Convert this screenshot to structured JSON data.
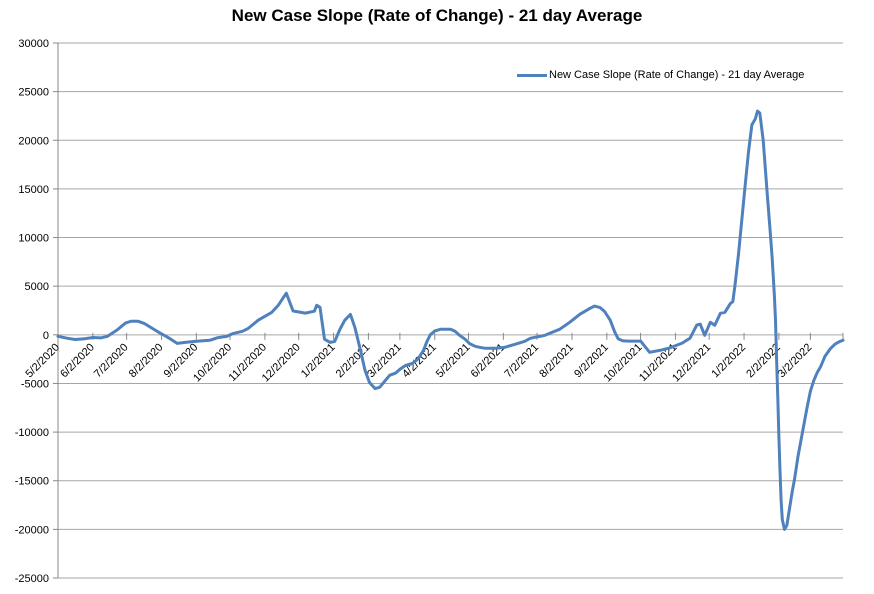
{
  "chart_data": {
    "type": "line",
    "title": "New Case Slope (Rate of Change) - 21 day Average",
    "xlabel": "",
    "ylabel": "",
    "grid": true,
    "legend": {
      "position": "top-right",
      "entries": [
        {
          "label": "New Case Slope (Rate of Change) - 21 day Average",
          "color": "#4F81BD"
        }
      ]
    },
    "ylim": [
      -25000,
      30000
    ],
    "y_ticks": [
      30000,
      25000,
      20000,
      15000,
      10000,
      5000,
      0,
      -5000,
      -10000,
      -15000,
      -20000,
      -25000
    ],
    "categories": [
      "5/2/2020",
      "6/2/2020",
      "7/2/2020",
      "8/2/2020",
      "9/2/2020",
      "10/2/2020",
      "11/2/2020",
      "12/2/2020",
      "1/2/2021",
      "2/2/2021",
      "3/2/2021",
      "4/2/2021",
      "5/2/2021",
      "6/2/2021",
      "7/2/2021",
      "8/2/2021",
      "9/2/2021",
      "10/2/2021",
      "11/2/2021",
      "12/2/2021",
      "1/2/2022",
      "2/2/2022",
      "3/2/2022"
    ],
    "category_day_offsets": [
      0,
      31,
      61,
      92,
      123,
      153,
      184,
      214,
      245,
      276,
      304,
      335,
      365,
      396,
      426,
      457,
      488,
      518,
      549,
      579,
      610,
      641,
      669
    ],
    "x_range_days": [
      0,
      698
    ],
    "x_unit": "days since 5/2/2020",
    "series": [
      {
        "name": "New Case Slope (Rate of Change) - 21 day Average",
        "color": "#4F81BD",
        "points": [
          [
            0,
            -150
          ],
          [
            8,
            -350
          ],
          [
            15,
            -480
          ],
          [
            24,
            -400
          ],
          [
            31,
            -280
          ],
          [
            38,
            -320
          ],
          [
            44,
            -150
          ],
          [
            52,
            450
          ],
          [
            60,
            1200
          ],
          [
            65,
            1400
          ],
          [
            71,
            1400
          ],
          [
            77,
            1150
          ],
          [
            84,
            650
          ],
          [
            89,
            300
          ],
          [
            96,
            -150
          ],
          [
            101,
            -500
          ],
          [
            106,
            -880
          ],
          [
            113,
            -780
          ],
          [
            122,
            -680
          ],
          [
            129,
            -600
          ],
          [
            135,
            -560
          ],
          [
            142,
            -300
          ],
          [
            150,
            -160
          ],
          [
            156,
            150
          ],
          [
            164,
            360
          ],
          [
            169,
            650
          ],
          [
            178,
            1500
          ],
          [
            184,
            1900
          ],
          [
            190,
            2300
          ],
          [
            196,
            3050
          ],
          [
            200,
            3750
          ],
          [
            203,
            4280
          ],
          [
            209,
            2450
          ],
          [
            220,
            2230
          ],
          [
            228,
            2430
          ],
          [
            230,
            3030
          ],
          [
            233,
            2830
          ],
          [
            237,
            -450
          ],
          [
            242,
            -780
          ],
          [
            246,
            -680
          ],
          [
            251,
            650
          ],
          [
            255,
            1500
          ],
          [
            260,
            2100
          ],
          [
            264,
            750
          ],
          [
            269,
            -1600
          ],
          [
            273,
            -3650
          ],
          [
            277,
            -4900
          ],
          [
            282,
            -5530
          ],
          [
            286,
            -5400
          ],
          [
            291,
            -4700
          ],
          [
            295,
            -4150
          ],
          [
            300,
            -3950
          ],
          [
            304,
            -3550
          ],
          [
            309,
            -3150
          ],
          [
            315,
            -2950
          ],
          [
            320,
            -2500
          ],
          [
            325,
            -1600
          ],
          [
            328,
            -700
          ],
          [
            331,
            0
          ],
          [
            335,
            400
          ],
          [
            340,
            570
          ],
          [
            349,
            570
          ],
          [
            353,
            360
          ],
          [
            357,
            -50
          ],
          [
            362,
            -450
          ],
          [
            366,
            -900
          ],
          [
            371,
            -1180
          ],
          [
            375,
            -1280
          ],
          [
            380,
            -1390
          ],
          [
            389,
            -1390
          ],
          [
            397,
            -1290
          ],
          [
            406,
            -980
          ],
          [
            415,
            -670
          ],
          [
            420,
            -360
          ],
          [
            424,
            -260
          ],
          [
            429,
            -150
          ],
          [
            433,
            -50
          ],
          [
            437,
            150
          ],
          [
            446,
            570
          ],
          [
            455,
            1290
          ],
          [
            464,
            2110
          ],
          [
            473,
            2730
          ],
          [
            477,
            2950
          ],
          [
            482,
            2800
          ],
          [
            486,
            2400
          ],
          [
            491,
            1500
          ],
          [
            495,
            300
          ],
          [
            498,
            -400
          ],
          [
            502,
            -600
          ],
          [
            507,
            -650
          ],
          [
            518,
            -650
          ],
          [
            526,
            -1800
          ],
          [
            535,
            -1600
          ],
          [
            544,
            -1350
          ],
          [
            555,
            -850
          ],
          [
            562,
            -350
          ],
          [
            568,
            1000
          ],
          [
            571,
            1100
          ],
          [
            575,
            -50
          ],
          [
            580,
            1290
          ],
          [
            584,
            980
          ],
          [
            589,
            2210
          ],
          [
            593,
            2310
          ],
          [
            598,
            3240
          ],
          [
            600,
            3400
          ],
          [
            602,
            5100
          ],
          [
            605,
            8200
          ],
          [
            608,
            11800
          ],
          [
            611,
            15400
          ],
          [
            614,
            18800
          ],
          [
            617,
            21600
          ],
          [
            620,
            22200
          ],
          [
            622,
            23000
          ],
          [
            624,
            22800
          ],
          [
            627,
            20000
          ],
          [
            629,
            17000
          ],
          [
            631,
            14000
          ],
          [
            633,
            11000
          ],
          [
            635,
            8000
          ],
          [
            637,
            4000
          ],
          [
            638,
            1500
          ],
          [
            639,
            -2500
          ],
          [
            640,
            -6500
          ],
          [
            641,
            -10500
          ],
          [
            642,
            -14000
          ],
          [
            643,
            -17000
          ],
          [
            644,
            -19000
          ],
          [
            646,
            -20000
          ],
          [
            648,
            -19600
          ],
          [
            651,
            -17500
          ],
          [
            653,
            -16000
          ],
          [
            655,
            -14800
          ],
          [
            658,
            -12500
          ],
          [
            662,
            -10000
          ],
          [
            666,
            -7500
          ],
          [
            669,
            -5800
          ],
          [
            672,
            -4700
          ],
          [
            675,
            -3900
          ],
          [
            678,
            -3300
          ],
          [
            682,
            -2200
          ],
          [
            687,
            -1400
          ],
          [
            691,
            -950
          ],
          [
            695,
            -700
          ],
          [
            698,
            -550
          ]
        ]
      }
    ],
    "colors": {
      "line": "#4F81BD",
      "gridline": "#a6a6a6",
      "axis": "#898989",
      "text": "#000000",
      "background": "#ffffff"
    }
  }
}
